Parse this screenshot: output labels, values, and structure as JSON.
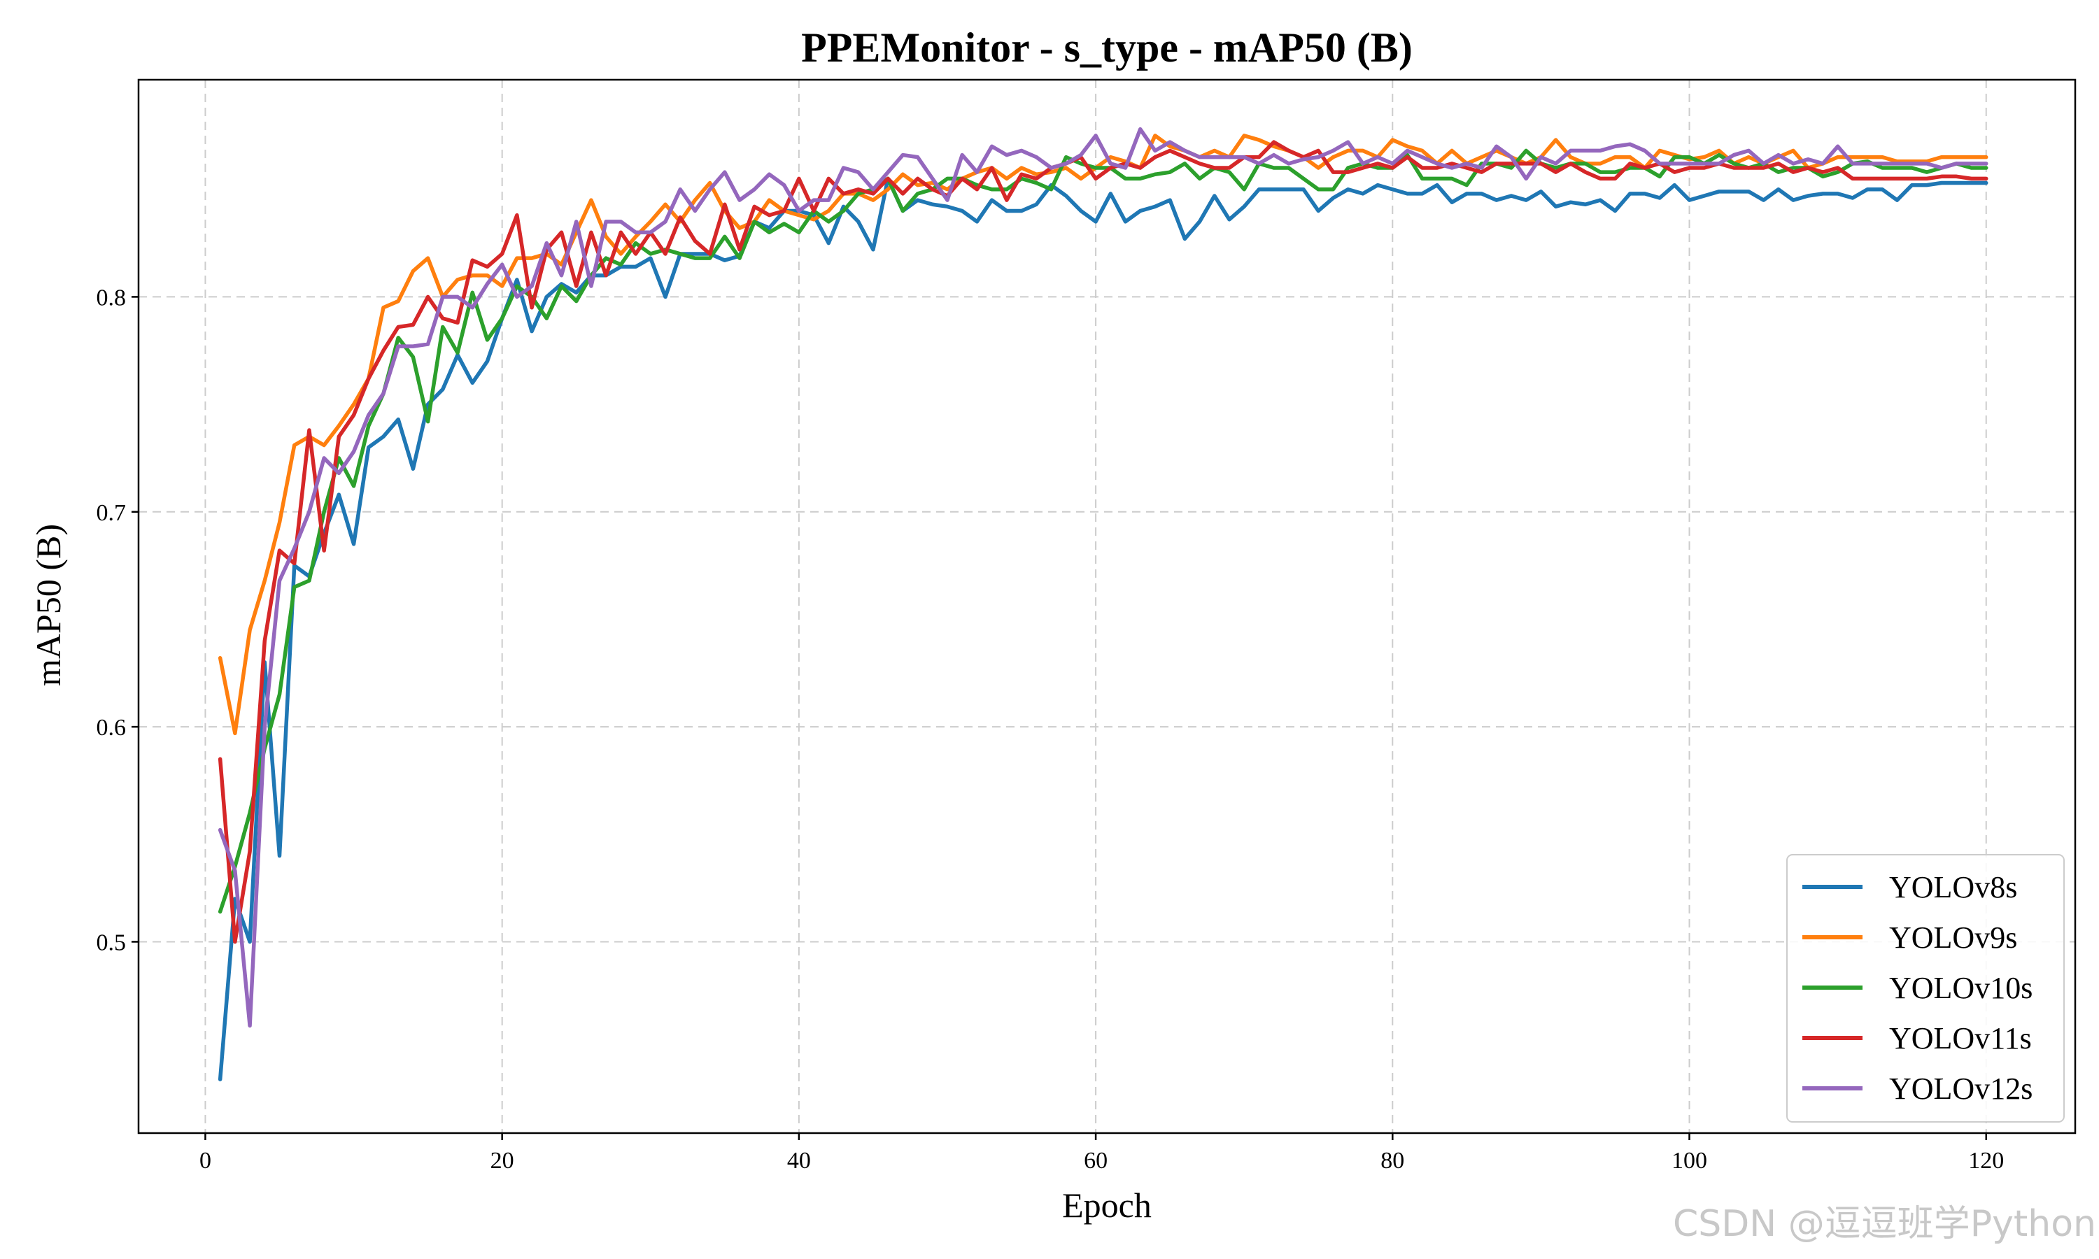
{
  "watermark": "CSDN @逗逗班学Python",
  "chart_data": {
    "type": "line",
    "title": "PPEMonitor - s_type - mAP50 (B)",
    "xlabel": "Epoch",
    "ylabel": "mAP50 (B)",
    "xlim": [
      -4.5,
      126
    ],
    "ylim": [
      0.411,
      0.901
    ],
    "xticks": [
      0,
      20,
      40,
      60,
      80,
      100,
      120
    ],
    "yticks": [
      0.5,
      0.6,
      0.7,
      0.8
    ],
    "grid": true,
    "legend_position": "lower-right",
    "x_range": [
      1,
      120
    ],
    "series": [
      {
        "name": "YOLOv8s",
        "color": "#1f77b4",
        "values": [
          0.436,
          0.52,
          0.5,
          0.63,
          0.54,
          0.675,
          0.67,
          0.69,
          0.708,
          0.685,
          0.73,
          0.735,
          0.743,
          0.72,
          0.75,
          0.757,
          0.773,
          0.76,
          0.77,
          0.79,
          0.808,
          0.784,
          0.8,
          0.806,
          0.802,
          0.81,
          0.81,
          0.814,
          0.814,
          0.818,
          0.8,
          0.82,
          0.82,
          0.82,
          0.817,
          0.819,
          0.835,
          0.832,
          0.84,
          0.84,
          0.838,
          0.825,
          0.842,
          0.835,
          0.822,
          0.855,
          0.84,
          0.845,
          0.843,
          0.842,
          0.84,
          0.835,
          0.845,
          0.84,
          0.84,
          0.843,
          0.852,
          0.847,
          0.84,
          0.835,
          0.848,
          0.835,
          0.84,
          0.842,
          0.845,
          0.827,
          0.835,
          0.847,
          0.836,
          0.842,
          0.85,
          0.85,
          0.85,
          0.85,
          0.84,
          0.846,
          0.85,
          0.848,
          0.852,
          0.85,
          0.848,
          0.848,
          0.852,
          0.844,
          0.848,
          0.848,
          0.845,
          0.847,
          0.845,
          0.849,
          0.842,
          0.844,
          0.843,
          0.845,
          0.84,
          0.848,
          0.848,
          0.846,
          0.852,
          0.845,
          0.847,
          0.849,
          0.849,
          0.849,
          0.845,
          0.85,
          0.845,
          0.847,
          0.848,
          0.848,
          0.846,
          0.85,
          0.85,
          0.845,
          0.852,
          0.852,
          0.853,
          0.853,
          0.853,
          0.853
        ]
      },
      {
        "name": "YOLOv9s",
        "color": "#ff7f0e",
        "values": [
          0.632,
          0.597,
          0.645,
          0.668,
          0.695,
          0.731,
          0.735,
          0.731,
          0.74,
          0.75,
          0.762,
          0.795,
          0.798,
          0.812,
          0.818,
          0.8,
          0.808,
          0.81,
          0.81,
          0.805,
          0.818,
          0.818,
          0.82,
          0.815,
          0.83,
          0.845,
          0.828,
          0.82,
          0.828,
          0.835,
          0.843,
          0.835,
          0.845,
          0.853,
          0.84,
          0.832,
          0.835,
          0.845,
          0.84,
          0.838,
          0.836,
          0.84,
          0.848,
          0.848,
          0.845,
          0.85,
          0.857,
          0.852,
          0.853,
          0.85,
          0.855,
          0.858,
          0.86,
          0.855,
          0.86,
          0.857,
          0.858,
          0.86,
          0.855,
          0.86,
          0.865,
          0.863,
          0.86,
          0.875,
          0.87,
          0.868,
          0.865,
          0.868,
          0.865,
          0.875,
          0.873,
          0.87,
          0.868,
          0.865,
          0.86,
          0.865,
          0.868,
          0.868,
          0.865,
          0.873,
          0.87,
          0.868,
          0.862,
          0.868,
          0.862,
          0.865,
          0.868,
          0.865,
          0.862,
          0.865,
          0.873,
          0.865,
          0.862,
          0.862,
          0.865,
          0.865,
          0.86,
          0.868,
          0.866,
          0.864,
          0.865,
          0.868,
          0.862,
          0.865,
          0.862,
          0.865,
          0.868,
          0.86,
          0.862,
          0.865,
          0.865,
          0.865,
          0.865,
          0.863,
          0.863,
          0.863,
          0.865,
          0.865,
          0.865,
          0.865
        ]
      },
      {
        "name": "YOLOv10s",
        "color": "#2ca02c",
        "values": [
          0.514,
          0.535,
          0.56,
          0.59,
          0.615,
          0.665,
          0.668,
          0.7,
          0.725,
          0.712,
          0.74,
          0.755,
          0.781,
          0.772,
          0.742,
          0.786,
          0.774,
          0.802,
          0.78,
          0.79,
          0.805,
          0.8,
          0.79,
          0.805,
          0.798,
          0.81,
          0.818,
          0.815,
          0.825,
          0.82,
          0.822,
          0.82,
          0.818,
          0.818,
          0.828,
          0.818,
          0.835,
          0.83,
          0.834,
          0.83,
          0.84,
          0.835,
          0.84,
          0.848,
          0.85,
          0.855,
          0.84,
          0.848,
          0.85,
          0.855,
          0.855,
          0.852,
          0.85,
          0.85,
          0.855,
          0.853,
          0.85,
          0.865,
          0.862,
          0.86,
          0.86,
          0.855,
          0.855,
          0.857,
          0.858,
          0.862,
          0.855,
          0.86,
          0.858,
          0.85,
          0.862,
          0.86,
          0.86,
          0.855,
          0.85,
          0.85,
          0.86,
          0.862,
          0.86,
          0.86,
          0.866,
          0.855,
          0.855,
          0.855,
          0.852,
          0.862,
          0.862,
          0.86,
          0.868,
          0.862,
          0.86,
          0.862,
          0.862,
          0.858,
          0.858,
          0.86,
          0.86,
          0.856,
          0.865,
          0.865,
          0.862,
          0.866,
          0.862,
          0.86,
          0.862,
          0.858,
          0.86,
          0.86,
          0.856,
          0.858,
          0.862,
          0.863,
          0.86,
          0.86,
          0.86,
          0.858,
          0.86,
          0.862,
          0.86,
          0.86
        ]
      },
      {
        "name": "YOLOv11s",
        "color": "#d62728",
        "values": [
          0.585,
          0.5,
          0.542,
          0.64,
          0.682,
          0.676,
          0.738,
          0.682,
          0.735,
          0.745,
          0.762,
          0.775,
          0.786,
          0.787,
          0.8,
          0.79,
          0.788,
          0.817,
          0.814,
          0.82,
          0.838,
          0.795,
          0.822,
          0.83,
          0.805,
          0.83,
          0.81,
          0.83,
          0.82,
          0.83,
          0.82,
          0.837,
          0.826,
          0.82,
          0.843,
          0.822,
          0.842,
          0.838,
          0.84,
          0.855,
          0.84,
          0.855,
          0.848,
          0.85,
          0.848,
          0.855,
          0.848,
          0.855,
          0.85,
          0.847,
          0.855,
          0.85,
          0.86,
          0.845,
          0.857,
          0.855,
          0.86,
          0.862,
          0.865,
          0.855,
          0.86,
          0.862,
          0.86,
          0.865,
          0.868,
          0.865,
          0.862,
          0.86,
          0.86,
          0.865,
          0.865,
          0.872,
          0.868,
          0.865,
          0.868,
          0.858,
          0.858,
          0.86,
          0.862,
          0.86,
          0.865,
          0.86,
          0.86,
          0.862,
          0.86,
          0.858,
          0.862,
          0.862,
          0.862,
          0.862,
          0.858,
          0.862,
          0.858,
          0.855,
          0.855,
          0.862,
          0.86,
          0.862,
          0.858,
          0.86,
          0.86,
          0.862,
          0.86,
          0.86,
          0.86,
          0.862,
          0.858,
          0.86,
          0.858,
          0.86,
          0.855,
          0.855,
          0.855,
          0.855,
          0.855,
          0.855,
          0.856,
          0.856,
          0.855,
          0.855
        ]
      },
      {
        "name": "YOLOv12s",
        "color": "#9467bd",
        "values": [
          0.552,
          0.533,
          0.461,
          0.6,
          0.668,
          0.683,
          0.7,
          0.725,
          0.718,
          0.728,
          0.745,
          0.755,
          0.777,
          0.777,
          0.778,
          0.8,
          0.8,
          0.795,
          0.806,
          0.815,
          0.8,
          0.805,
          0.825,
          0.81,
          0.835,
          0.805,
          0.835,
          0.835,
          0.83,
          0.83,
          0.835,
          0.85,
          0.84,
          0.85,
          0.858,
          0.845,
          0.85,
          0.857,
          0.852,
          0.84,
          0.845,
          0.845,
          0.86,
          0.858,
          0.85,
          0.858,
          0.866,
          0.865,
          0.855,
          0.845,
          0.866,
          0.858,
          0.87,
          0.866,
          0.868,
          0.865,
          0.86,
          0.862,
          0.866,
          0.875,
          0.862,
          0.86,
          0.878,
          0.868,
          0.872,
          0.868,
          0.865,
          0.865,
          0.865,
          0.865,
          0.862,
          0.866,
          0.862,
          0.864,
          0.865,
          0.868,
          0.872,
          0.862,
          0.865,
          0.862,
          0.868,
          0.865,
          0.862,
          0.86,
          0.862,
          0.86,
          0.87,
          0.865,
          0.855,
          0.865,
          0.862,
          0.868,
          0.868,
          0.868,
          0.87,
          0.871,
          0.868,
          0.862,
          0.862,
          0.862,
          0.862,
          0.862,
          0.866,
          0.868,
          0.862,
          0.866,
          0.862,
          0.864,
          0.862,
          0.87,
          0.862,
          0.862,
          0.862,
          0.862,
          0.862,
          0.862,
          0.86,
          0.862,
          0.862,
          0.862
        ]
      }
    ]
  }
}
